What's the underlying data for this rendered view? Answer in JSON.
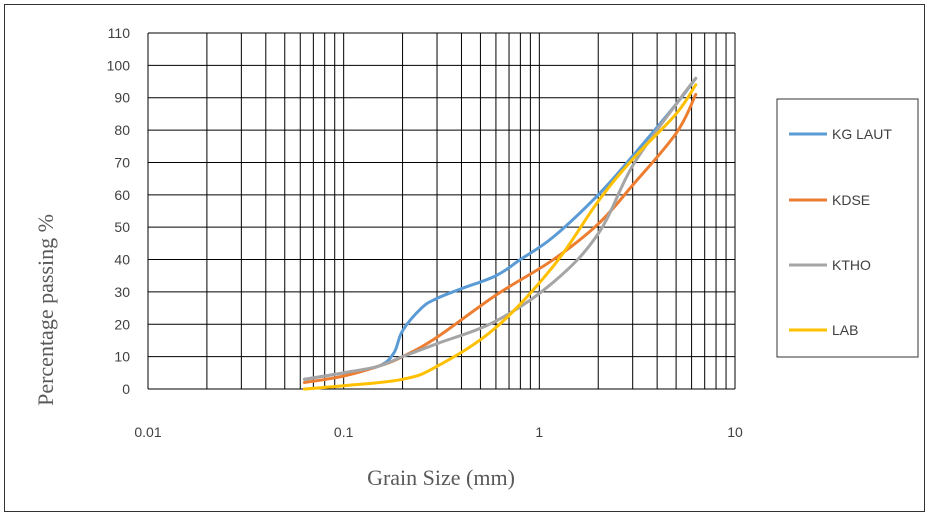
{
  "chart_data": {
    "type": "line",
    "title": "",
    "xlabel": "Grain Size  (mm)",
    "ylabel": "Percentage passing %",
    "x_scale": "log",
    "xlim": [
      0.01,
      10
    ],
    "ylim": [
      0,
      110
    ],
    "x_ticks": [
      0.01,
      0.1,
      1,
      10
    ],
    "x_tick_labels": [
      "0.01",
      "0.1",
      "1",
      "10"
    ],
    "y_ticks": [
      0,
      10,
      20,
      30,
      40,
      50,
      60,
      70,
      80,
      90,
      100,
      110
    ],
    "grid": true,
    "legend_position": "right",
    "series": [
      {
        "name": "KG LAUT",
        "color": "#5B9BD5",
        "x": [
          0.063,
          0.1,
          0.15,
          0.18,
          0.2,
          0.25,
          0.3,
          0.4,
          0.6,
          0.8,
          1.18,
          2,
          3,
          5,
          6.3
        ],
        "y": [
          3,
          5,
          7,
          11,
          18,
          25,
          28,
          31,
          35,
          40,
          47,
          60,
          72,
          88,
          96
        ]
      },
      {
        "name": "KDSE",
        "color": "#ED7D31",
        "x": [
          0.063,
          0.1,
          0.15,
          0.2,
          0.3,
          0.6,
          1.18,
          2,
          3,
          5,
          6.3
        ],
        "y": [
          2,
          4,
          7,
          10,
          16,
          29,
          40,
          51,
          63,
          79,
          91
        ]
      },
      {
        "name": "KTHO",
        "color": "#A5A5A5",
        "x": [
          0.063,
          0.1,
          0.15,
          0.2,
          0.3,
          0.6,
          1.18,
          2,
          3,
          5,
          6.3
        ],
        "y": [
          3,
          5,
          7,
          10,
          14,
          21,
          33,
          48,
          69,
          88,
          96
        ]
      },
      {
        "name": "LAB",
        "color": "#FFC000",
        "x": [
          0.063,
          0.1,
          0.2,
          0.3,
          0.6,
          1.18,
          2,
          3,
          5,
          6.3
        ],
        "y": [
          0,
          1,
          3,
          7,
          19,
          38,
          58,
          71,
          85,
          94
        ]
      }
    ]
  }
}
